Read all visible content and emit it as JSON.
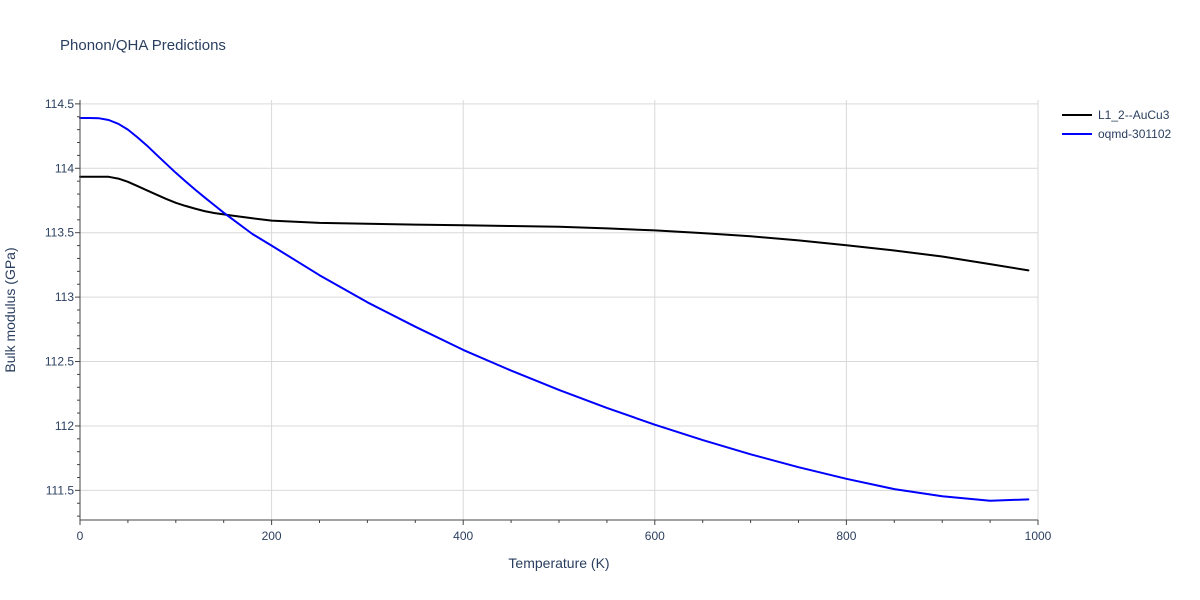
{
  "chart_data": {
    "type": "line",
    "title": "Phonon/QHA Predictions",
    "xlabel": "Temperature (K)",
    "ylabel": "Bulk modulus (GPa)",
    "xlim": [
      0,
      1000
    ],
    "ylim": [
      111.27,
      114.53
    ],
    "x_ticks": [
      0,
      200,
      400,
      600,
      800,
      1000
    ],
    "x_tick_labels": [
      "0",
      "200",
      "400",
      "600",
      "800",
      "1000"
    ],
    "y_ticks": [
      111.5,
      112,
      112.5,
      113,
      113.5,
      114,
      114.5
    ],
    "y_tick_labels": [
      "111.5",
      "112",
      "112.5",
      "113",
      "113.5",
      "114",
      "114.5"
    ],
    "grid": true,
    "legend_position": "top-right",
    "series": [
      {
        "name": "L1_2--AuCu3",
        "color": "#000000",
        "x": [
          0,
          10,
          20,
          30,
          40,
          50,
          60,
          70,
          80,
          90,
          100,
          110,
          120,
          130,
          140,
          150,
          160,
          180,
          200,
          250,
          300,
          350,
          400,
          450,
          500,
          550,
          600,
          650,
          700,
          750,
          800,
          850,
          900,
          950,
          990
        ],
        "y": [
          113.935,
          113.935,
          113.935,
          113.934,
          113.92,
          113.895,
          113.862,
          113.828,
          113.795,
          113.762,
          113.732,
          113.708,
          113.687,
          113.668,
          113.653,
          113.642,
          113.632,
          113.612,
          113.594,
          113.576,
          113.57,
          113.563,
          113.558,
          113.552,
          113.546,
          113.533,
          113.518,
          113.497,
          113.472,
          113.44,
          113.402,
          113.362,
          113.315,
          113.256,
          113.207
        ]
      },
      {
        "name": "oqmd-301102",
        "color": "#0000ff",
        "x": [
          0,
          10,
          20,
          30,
          40,
          50,
          60,
          70,
          80,
          90,
          100,
          110,
          120,
          130,
          140,
          150,
          160,
          180,
          200,
          250,
          300,
          350,
          400,
          450,
          500,
          550,
          600,
          650,
          700,
          750,
          800,
          850,
          900,
          950,
          990
        ],
        "y": [
          114.39,
          114.39,
          114.388,
          114.375,
          114.345,
          114.3,
          114.24,
          114.175,
          114.105,
          114.035,
          113.965,
          113.9,
          113.835,
          113.775,
          113.715,
          113.655,
          113.6,
          113.49,
          113.4,
          113.17,
          112.96,
          112.77,
          112.59,
          112.43,
          112.28,
          112.14,
          112.01,
          111.89,
          111.78,
          111.68,
          111.59,
          111.51,
          111.455,
          111.42,
          111.43
        ]
      }
    ]
  }
}
